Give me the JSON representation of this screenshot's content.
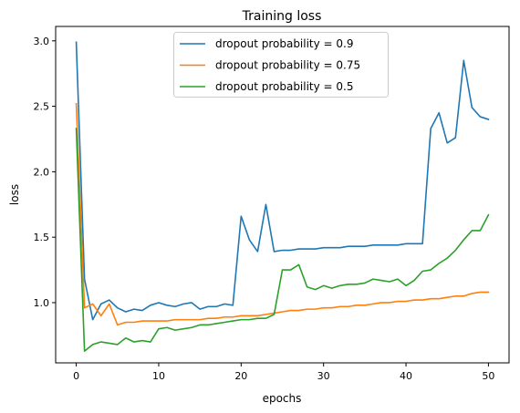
{
  "chart_data": {
    "type": "line",
    "title": "Training loss",
    "xlabel": "epochs",
    "ylabel": "loss",
    "xlim": [
      -2.5,
      52.5
    ],
    "ylim": [
      0.54,
      3.11
    ],
    "xticks": [
      0,
      10,
      20,
      30,
      40,
      50
    ],
    "yticks": [
      1.0,
      1.5,
      2.0,
      2.5,
      3.0
    ],
    "ytick_labels": [
      "1.0",
      "1.5",
      "2.0",
      "2.5",
      "3.0"
    ],
    "grid": false,
    "legend_position": "upper center",
    "x": [
      0,
      1,
      2,
      3,
      4,
      5,
      6,
      7,
      8,
      9,
      10,
      11,
      12,
      13,
      14,
      15,
      16,
      17,
      18,
      19,
      20,
      21,
      22,
      23,
      24,
      25,
      26,
      27,
      28,
      29,
      30,
      31,
      32,
      33,
      34,
      35,
      36,
      37,
      38,
      39,
      40,
      41,
      42,
      43,
      44,
      45,
      46,
      47,
      48,
      49,
      50
    ],
    "series": [
      {
        "name": "dropout probability = 0.9",
        "color": "#1f77b4",
        "values": [
          2.99,
          1.18,
          0.87,
          0.99,
          1.02,
          0.96,
          0.93,
          0.95,
          0.94,
          0.98,
          1.0,
          0.98,
          0.97,
          0.99,
          1.0,
          0.95,
          0.97,
          0.97,
          0.99,
          0.98,
          1.66,
          1.48,
          1.39,
          1.75,
          1.39,
          1.4,
          1.4,
          1.41,
          1.41,
          1.41,
          1.42,
          1.42,
          1.42,
          1.43,
          1.43,
          1.43,
          1.44,
          1.44,
          1.44,
          1.44,
          1.45,
          1.45,
          1.45,
          2.33,
          2.45,
          2.22,
          2.26,
          2.85,
          2.49,
          2.42,
          2.4
        ]
      },
      {
        "name": "dropout probability = 0.75",
        "color": "#ff7f0e",
        "values": [
          2.52,
          0.96,
          0.99,
          0.9,
          0.99,
          0.83,
          0.85,
          0.85,
          0.86,
          0.86,
          0.86,
          0.86,
          0.87,
          0.87,
          0.87,
          0.87,
          0.88,
          0.88,
          0.89,
          0.89,
          0.9,
          0.9,
          0.9,
          0.91,
          0.92,
          0.93,
          0.94,
          0.94,
          0.95,
          0.95,
          0.96,
          0.96,
          0.97,
          0.97,
          0.98,
          0.98,
          0.99,
          1.0,
          1.0,
          1.01,
          1.01,
          1.02,
          1.02,
          1.03,
          1.03,
          1.04,
          1.05,
          1.05,
          1.07,
          1.08,
          1.08
        ]
      },
      {
        "name": "dropout probability = 0.5",
        "color": "#2ca02c",
        "values": [
          2.33,
          0.63,
          0.68,
          0.7,
          0.69,
          0.68,
          0.73,
          0.7,
          0.71,
          0.7,
          0.8,
          0.81,
          0.79,
          0.8,
          0.81,
          0.83,
          0.83,
          0.84,
          0.85,
          0.86,
          0.87,
          0.87,
          0.88,
          0.88,
          0.91,
          1.25,
          1.25,
          1.29,
          1.12,
          1.1,
          1.13,
          1.11,
          1.13,
          1.14,
          1.14,
          1.15,
          1.18,
          1.17,
          1.16,
          1.18,
          1.13,
          1.17,
          1.24,
          1.25,
          1.3,
          1.34,
          1.4,
          1.48,
          1.55,
          1.55,
          1.67
        ]
      }
    ]
  }
}
